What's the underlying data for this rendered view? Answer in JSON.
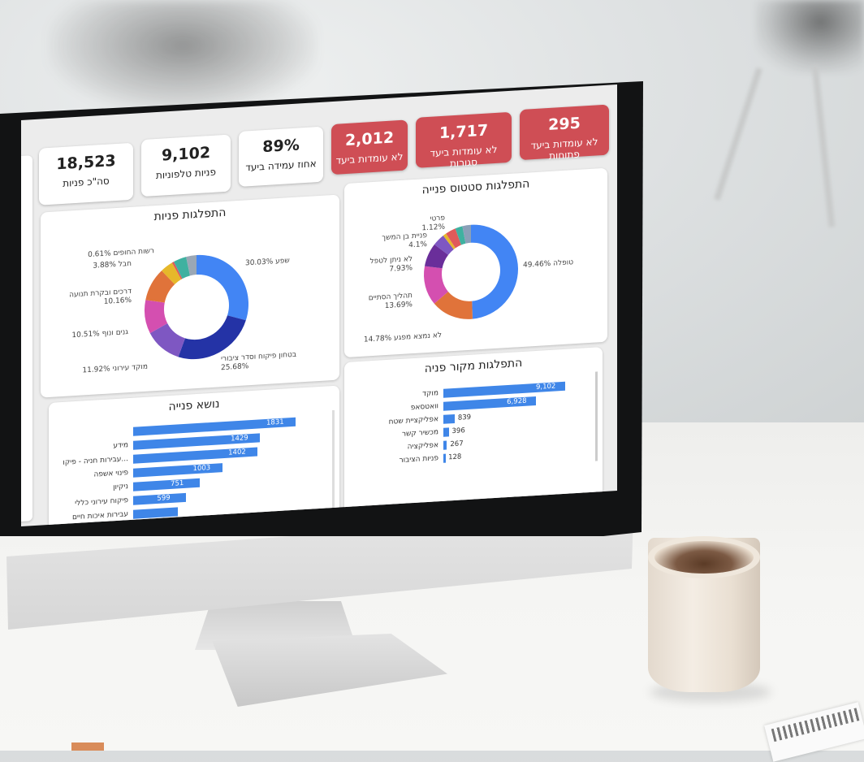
{
  "kpis": [
    {
      "value": "295",
      "label": "לא עומדות ביעד פתוחות",
      "style": "red"
    },
    {
      "value": "1,717",
      "label": "לא עומדות ביעד סגורות",
      "style": "red"
    },
    {
      "value": "2,012",
      "label": "לא עומדות ביעד",
      "style": "red"
    },
    {
      "value": "89%",
      "label": "אחוז עמידה ביעד",
      "style": "white"
    },
    {
      "value": "9,102",
      "label": "פניות טלפוניות",
      "style": "white"
    },
    {
      "value": "18,523",
      "label": "סה\"כ פניות",
      "style": "white"
    }
  ],
  "colors": {
    "red": "#cf4e55",
    "bar": "#3f86e8"
  },
  "chart_data": [
    {
      "type": "pie",
      "title": "התפלגות סטטוס פנייה",
      "slices": [
        {
          "name": "טופלה",
          "value": 49.46,
          "label": "טופלה 49.46%",
          "color": "#4285f4"
        },
        {
          "name": "לא נמצא מפגע",
          "value": 14.78,
          "label": "14.78% לא נמצא מפגע",
          "color": "#e0733a"
        },
        {
          "name": "תהליך הסתיים",
          "value": 13.69,
          "label": "תהליך הסתיים\n13.69%",
          "color": "#d44fb0"
        },
        {
          "name": "לא ניתן לטפל",
          "value": 7.93,
          "label": "לא ניתן לטפל\n7.93%",
          "color": "#6a2e9a"
        },
        {
          "name": "פניית בן המשך",
          "value": 4.1,
          "label": "פניית בן המשך\n4.1%",
          "color": "#7e57c2"
        },
        {
          "name": "פרטי",
          "value": 1.12,
          "label": "פרטי\n1.12%",
          "color": "#e6b82a"
        },
        {
          "name": "other1",
          "value": 3.5,
          "color": "#e05a5a"
        },
        {
          "name": "other2",
          "value": 2.5,
          "color": "#3fb1a0"
        },
        {
          "name": "other3",
          "value": 2.92,
          "color": "#8aa0b8"
        }
      ]
    },
    {
      "type": "pie",
      "title": "התפלגות פניות",
      "slices": [
        {
          "name": "שפע",
          "value": 30.03,
          "label": "שפע 30.03%",
          "color": "#4285f4"
        },
        {
          "name": "בטחון פיקוח וסדר ציבורי",
          "value": 25.68,
          "label": "בטחון פיקוח וסדר ציבורי\n25.68%",
          "color": "#2433a6"
        },
        {
          "name": "מוקד עירוני",
          "value": 11.92,
          "label": "11.92% מוקד עירוני",
          "color": "#7e57c2"
        },
        {
          "name": "גגים ונוף",
          "value": 10.51,
          "label": "10.51% גנים ונוף",
          "color": "#d44fb0"
        },
        {
          "name": "דרכים ובקרת תנועה",
          "value": 10.16,
          "label": "דרכים ובקרת תנועה\n10.16%",
          "color": "#e0733a"
        },
        {
          "name": "חבל",
          "value": 3.88,
          "label": "3.88% חבל",
          "color": "#e6b82a"
        },
        {
          "name": "רשות החופים",
          "value": 0.61,
          "label": "0.61% רשות החופים",
          "color": "#e05a5a"
        },
        {
          "name": "other1",
          "value": 4.0,
          "color": "#3fb1a0"
        },
        {
          "name": "other2",
          "value": 3.21,
          "color": "#9aa7b5"
        }
      ]
    },
    {
      "type": "bar",
      "title": "התפלגות מקור פניה",
      "categories": [
        "מוקד",
        "וואטסאפ",
        "אפליקציית שטח",
        "מכשיר קשר",
        "אפליקציה",
        "פניות הציבור"
      ],
      "values": [
        9102,
        6928,
        839,
        396,
        267,
        128
      ],
      "value_labels": [
        "9,102",
        "6,928",
        "839",
        "396",
        "267",
        "128"
      ]
    },
    {
      "type": "bar",
      "title": "נושא פנייה",
      "categories": [
        "",
        "מידע",
        "עבירות חניה - פיקו...",
        "פינוי אשפה",
        "ניקיון",
        "פיקוח עירוני כללי",
        "עבירות איכות חיים"
      ],
      "values": [
        1831,
        1429,
        1402,
        1003,
        751,
        599,
        500
      ],
      "value_labels": [
        "1831",
        "1429",
        "1402",
        "1003",
        "751",
        "599",
        ""
      ]
    }
  ]
}
